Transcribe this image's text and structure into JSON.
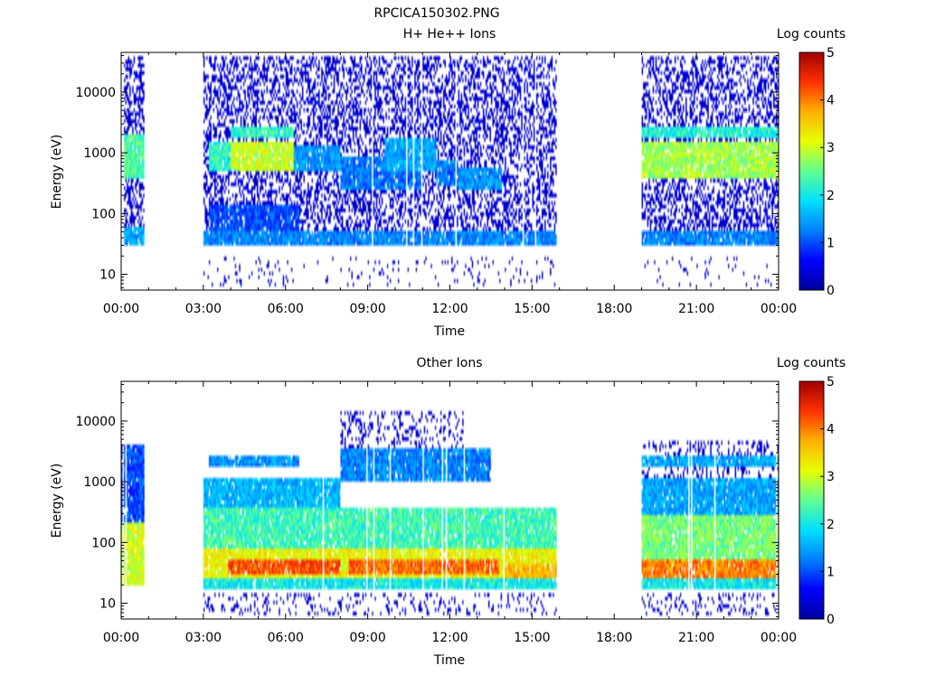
{
  "figure_title": "RPCICA150302.PNG",
  "colormap_stops": [
    "#0000a0",
    "#0000ff",
    "#0080ff",
    "#00e0ff",
    "#60ff90",
    "#e8ff00",
    "#ffb000",
    "#ff3000",
    "#a00000"
  ],
  "chart_data": [
    {
      "type": "heatmap",
      "title": "H+ He++ Ions",
      "xlabel": "Time",
      "ylabel": "Energy (eV)",
      "x_ticks": [
        "00:00",
        "03:00",
        "06:00",
        "09:00",
        "12:00",
        "15:00",
        "18:00",
        "21:00",
        "00:00"
      ],
      "xlim_hours": [
        0,
        24
      ],
      "y_scale": "log",
      "ylim": [
        5.5,
        45000
      ],
      "y_ticks": [
        10,
        100,
        1000,
        10000
      ],
      "y_tick_labels": [
        "10",
        "100",
        "1000",
        "10000"
      ],
      "colorbar": {
        "label": "Log counts",
        "range": [
          0,
          5
        ],
        "ticks": [
          "0",
          "1",
          "2",
          "3",
          "4",
          "5"
        ]
      },
      "data_gaps_hours": [
        [
          0.85,
          3.0
        ],
        [
          15.9,
          19.0
        ]
      ],
      "regions": [
        {
          "t_start": 3.0,
          "t_end": 15.9,
          "energy_low": 30,
          "energy_high": 50,
          "level": 1.3
        },
        {
          "t_start": 19.0,
          "t_end": 24.0,
          "energy_low": 30,
          "energy_high": 50,
          "level": 1.3
        },
        {
          "t_start": 0.0,
          "t_end": 0.85,
          "energy_low": 30,
          "energy_high": 60,
          "level": 1.5
        },
        {
          "t_start": 3.2,
          "t_end": 6.5,
          "energy_low": 50,
          "energy_high": 150,
          "level": 1.0
        },
        {
          "t_start": 3.2,
          "t_end": 4.0,
          "energy_low": 500,
          "energy_high": 1600,
          "level": 2.2
        },
        {
          "t_start": 4.0,
          "t_end": 6.3,
          "energy_low": 500,
          "energy_high": 1500,
          "level": 3.0
        },
        {
          "t_start": 6.3,
          "t_end": 8.0,
          "energy_low": 500,
          "energy_high": 1300,
          "level": 1.4
        },
        {
          "t_start": 4.0,
          "t_end": 6.3,
          "energy_low": 1700,
          "energy_high": 2800,
          "level": 2.2
        },
        {
          "t_start": 8.0,
          "t_end": 11.0,
          "energy_low": 250,
          "energy_high": 900,
          "level": 1.2
        },
        {
          "t_start": 9.6,
          "t_end": 11.5,
          "energy_low": 500,
          "energy_high": 1800,
          "level": 1.5
        },
        {
          "t_start": 11.5,
          "t_end": 12.3,
          "energy_low": 300,
          "energy_high": 800,
          "level": 1.2
        },
        {
          "t_start": 12.3,
          "t_end": 13.9,
          "energy_low": 250,
          "energy_high": 550,
          "level": 1.4
        },
        {
          "t_start": 0.0,
          "t_end": 0.85,
          "energy_low": 400,
          "energy_high": 2000,
          "level": 2.4
        },
        {
          "t_start": 19.0,
          "t_end": 24.0,
          "energy_low": 400,
          "energy_high": 1500,
          "level": 2.8
        },
        {
          "t_start": 19.0,
          "t_end": 24.0,
          "energy_low": 1700,
          "energy_high": 2800,
          "level": 2.1
        }
      ],
      "sparse_background": [
        {
          "t_start": 0.0,
          "t_end": 0.85,
          "energy_low": 30,
          "energy_high": 40000,
          "density": 0.5
        },
        {
          "t_start": 3.0,
          "t_end": 15.9,
          "energy_low": 30,
          "energy_high": 40000,
          "density": 0.45
        },
        {
          "t_start": 19.0,
          "t_end": 24.0,
          "energy_low": 30,
          "energy_high": 40000,
          "density": 0.45
        },
        {
          "t_start": 3.0,
          "t_end": 15.9,
          "energy_low": 6,
          "energy_high": 20,
          "density": 0.08
        },
        {
          "t_start": 19.0,
          "t_end": 24.0,
          "energy_low": 6,
          "energy_high": 20,
          "density": 0.08
        }
      ]
    },
    {
      "type": "heatmap",
      "title": "Other Ions",
      "xlabel": "Time",
      "ylabel": "Energy (eV)",
      "x_ticks": [
        "00:00",
        "03:00",
        "06:00",
        "09:00",
        "12:00",
        "15:00",
        "18:00",
        "21:00",
        "00:00"
      ],
      "xlim_hours": [
        0,
        24
      ],
      "y_scale": "log",
      "ylim": [
        5.5,
        45000
      ],
      "y_ticks": [
        10,
        100,
        1000,
        10000
      ],
      "y_tick_labels": [
        "10",
        "100",
        "1000",
        "10000"
      ],
      "colorbar": {
        "label": "Log counts",
        "range": [
          0,
          5
        ],
        "ticks": [
          "0",
          "1",
          "2",
          "3",
          "4",
          "5"
        ]
      },
      "data_gaps_hours": [
        [
          0.85,
          3.0
        ],
        [
          15.9,
          19.0
        ]
      ],
      "regions": [
        {
          "t_start": 3.0,
          "t_end": 15.9,
          "energy_low": 18,
          "energy_high": 30,
          "level": 2.0
        },
        {
          "t_start": 19.0,
          "t_end": 24.0,
          "energy_low": 18,
          "energy_high": 30,
          "level": 2.0
        },
        {
          "t_start": 3.0,
          "t_end": 15.9,
          "energy_low": 25,
          "energy_high": 80,
          "level": 3.2
        },
        {
          "t_start": 3.9,
          "t_end": 8.0,
          "energy_low": 28,
          "energy_high": 55,
          "level": 4.2
        },
        {
          "t_start": 8.3,
          "t_end": 13.8,
          "energy_low": 30,
          "energy_high": 50,
          "level": 4.1
        },
        {
          "t_start": 14.0,
          "t_end": 15.9,
          "energy_low": 25,
          "energy_high": 45,
          "level": 3.6
        },
        {
          "t_start": 3.0,
          "t_end": 15.9,
          "energy_low": 80,
          "energy_high": 400,
          "level": 2.3
        },
        {
          "t_start": 3.0,
          "t_end": 8.0,
          "energy_low": 400,
          "energy_high": 1200,
          "level": 1.6
        },
        {
          "t_start": 8.0,
          "t_end": 13.5,
          "energy_low": 1000,
          "energy_high": 3500,
          "level": 1.3
        },
        {
          "t_start": 3.2,
          "t_end": 6.5,
          "energy_low": 1800,
          "energy_high": 2800,
          "level": 1.4
        },
        {
          "t_start": 0.0,
          "t_end": 0.85,
          "energy_low": 20,
          "energy_high": 200,
          "level": 3.0
        },
        {
          "t_start": 0.0,
          "t_end": 0.85,
          "energy_low": 200,
          "energy_high": 4000,
          "level": 1.0
        },
        {
          "t_start": 19.0,
          "t_end": 24.0,
          "energy_low": 25,
          "energy_high": 50,
          "level": 4.0
        },
        {
          "t_start": 19.0,
          "t_end": 24.0,
          "energy_low": 50,
          "energy_high": 300,
          "level": 2.6
        },
        {
          "t_start": 19.0,
          "t_end": 24.0,
          "energy_low": 300,
          "energy_high": 1200,
          "level": 1.5
        },
        {
          "t_start": 19.0,
          "t_end": 24.0,
          "energy_low": 1800,
          "energy_high": 2600,
          "level": 1.5
        }
      ],
      "sparse_background": [
        {
          "t_start": 3.0,
          "t_end": 15.9,
          "energy_low": 6,
          "energy_high": 14,
          "density": 0.2
        },
        {
          "t_start": 19.0,
          "t_end": 24.0,
          "energy_low": 6,
          "energy_high": 14,
          "density": 0.2
        },
        {
          "t_start": 8.0,
          "t_end": 12.5,
          "energy_low": 3500,
          "energy_high": 15000,
          "density": 0.25
        },
        {
          "t_start": 19.0,
          "t_end": 24.0,
          "energy_low": 1200,
          "energy_high": 5000,
          "density": 0.3
        }
      ]
    }
  ]
}
